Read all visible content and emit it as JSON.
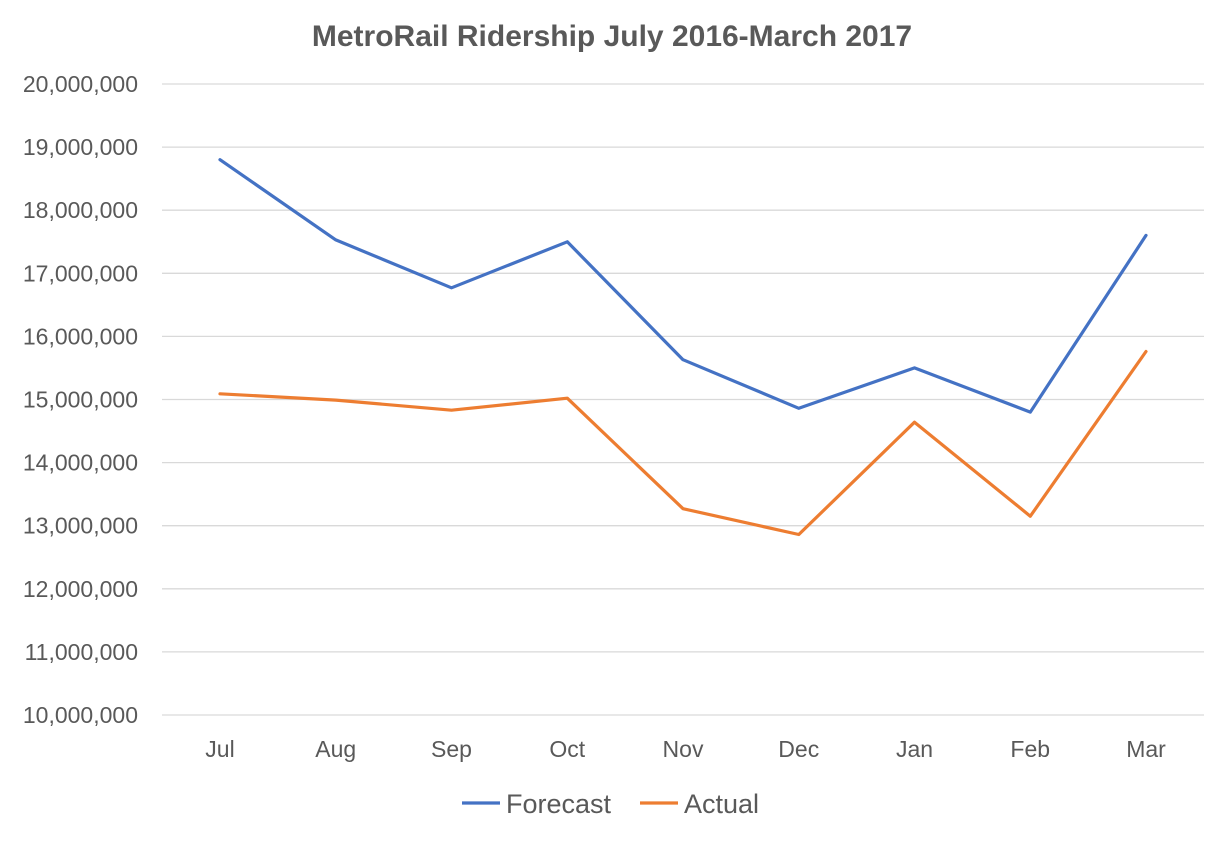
{
  "chart_data": {
    "type": "line",
    "title": "MetroRail Ridership July 2016-March 2017",
    "xlabel": "",
    "ylabel": "",
    "categories": [
      "Jul",
      "Aug",
      "Sep",
      "Oct",
      "Nov",
      "Dec",
      "Jan",
      "Feb",
      "Mar"
    ],
    "series": [
      {
        "name": "Forecast",
        "color": "#4472c4",
        "values": [
          18800000,
          17530000,
          16770000,
          17500000,
          15630000,
          14860000,
          15500000,
          14800000,
          17600000
        ]
      },
      {
        "name": "Actual",
        "color": "#ed7d31",
        "values": [
          15090000,
          14990000,
          14830000,
          15020000,
          13270000,
          12860000,
          14640000,
          13150000,
          15760000
        ]
      }
    ],
    "ylim": [
      10000000,
      20000000
    ],
    "y_ticks": [
      "10,000,000",
      "11,000,000",
      "12,000,000",
      "13,000,000",
      "14,000,000",
      "15,000,000",
      "16,000,000",
      "17,000,000",
      "18,000,000",
      "19,000,000",
      "20,000,000"
    ],
    "y_tick_values": [
      10000000,
      11000000,
      12000000,
      13000000,
      14000000,
      15000000,
      16000000,
      17000000,
      18000000,
      19000000,
      20000000
    ],
    "grid": true,
    "legend_position": "bottom"
  }
}
